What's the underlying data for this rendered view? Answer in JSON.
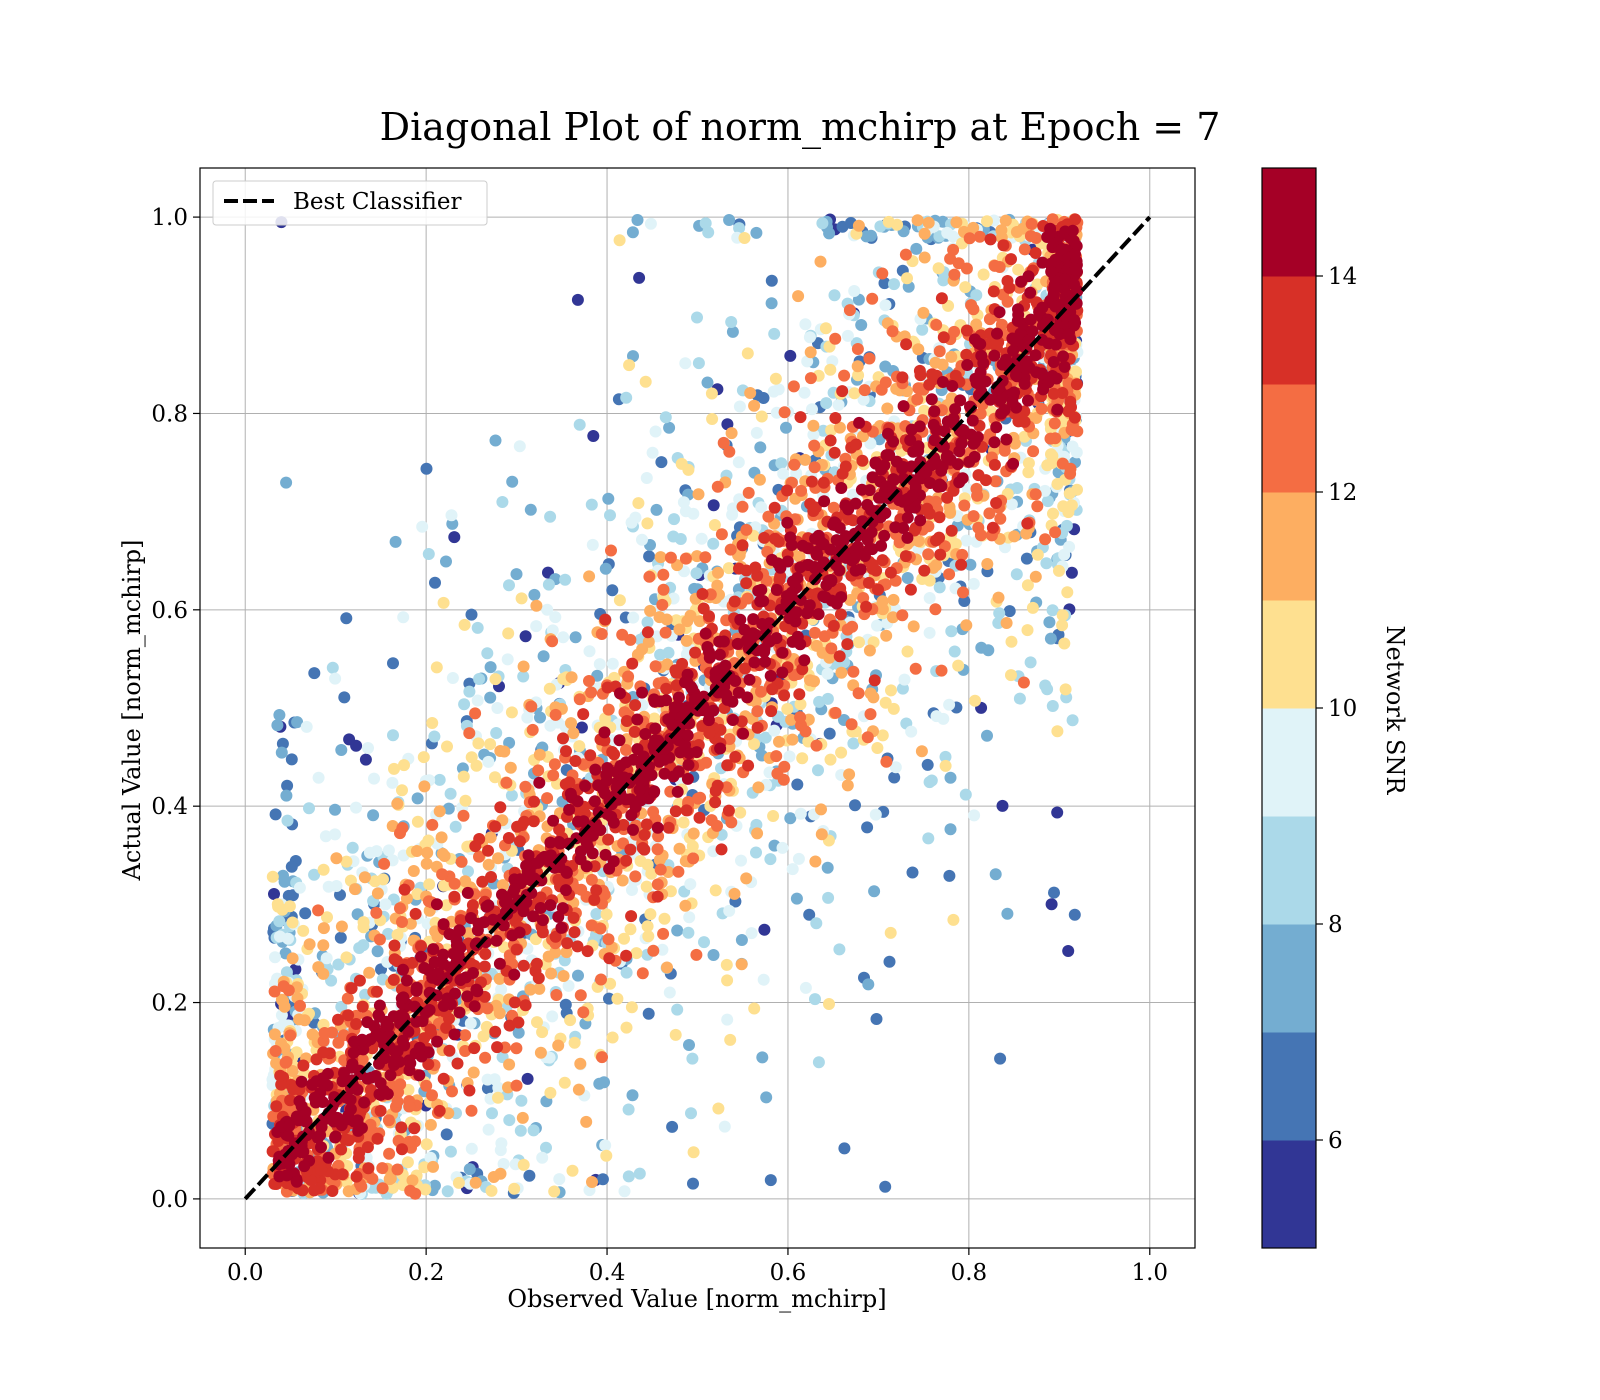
{
  "chart_data": {
    "type": "scatter",
    "title": "Diagonal Plot of norm_mchirp at Epoch = 7",
    "xlabel": "Observed Value [norm_mchirp]",
    "ylabel": "Actual Value [norm_mchirp]",
    "xlim": [
      -0.05,
      1.05
    ],
    "ylim": [
      -0.05,
      1.05
    ],
    "xticks": [
      "0.0",
      "0.2",
      "0.4",
      "0.6",
      "0.8",
      "1.0"
    ],
    "yticks": [
      "0.0",
      "0.2",
      "0.4",
      "0.6",
      "0.8",
      "1.0"
    ],
    "grid": true,
    "reference_line": {
      "name": "Best Classifier",
      "x": [
        0.0,
        1.0
      ],
      "y": [
        0.0,
        1.0
      ],
      "style": "dashed",
      "color": "#000000"
    },
    "legend": {
      "placement": "top-left",
      "entries": [
        "Best Classifier"
      ]
    },
    "colorbar": {
      "label": "Network SNR",
      "range": [
        5,
        15
      ],
      "bins": [
        5,
        6,
        7,
        8,
        9,
        10,
        11,
        12,
        13,
        14,
        15
      ],
      "ticks": [
        "6",
        "8",
        "10",
        "12",
        "14"
      ],
      "colors": [
        "#313695",
        "#4575b4",
        "#74add1",
        "#abd9e9",
        "#e0f3f8",
        "#fee090",
        "#fdae61",
        "#f46d43",
        "#d73027",
        "#a50026"
      ]
    },
    "series_description": {
      "points": "dense scatter of samples; highest-SNR points cluster tightly along the diagonal, lower-SNR points spread further away",
      "high_snr_color": "#a50026",
      "low_snr_color": "#313695"
    }
  }
}
